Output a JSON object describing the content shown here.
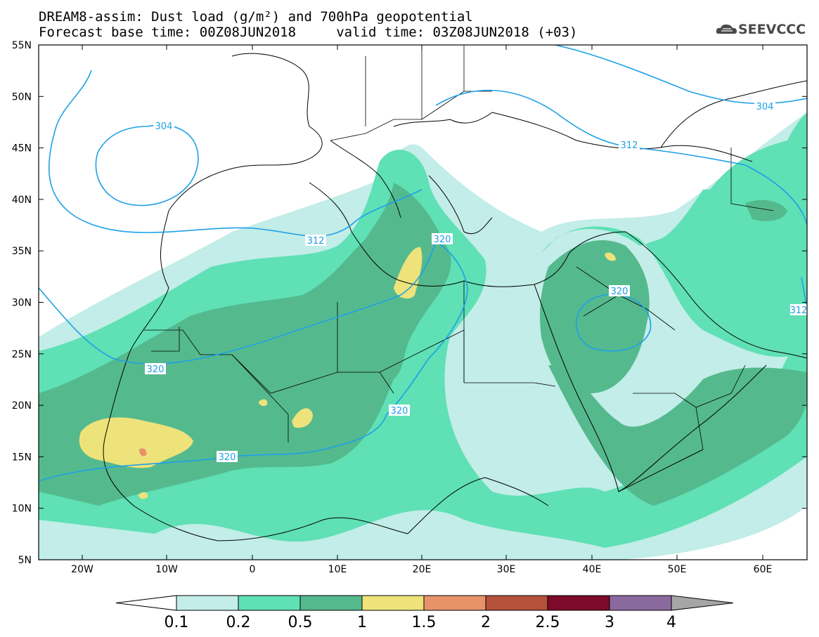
{
  "header": {
    "title_line1": "DREAM8-assim: Dust load (g/m²) and 700hPa geopotential",
    "title_line2": "Forecast base time: 00Z08JUN2018     valid time: 03Z08JUN2018 (+03)"
  },
  "logo": {
    "text": "SEEVCCC",
    "icon": "cloud-icon"
  },
  "map": {
    "lon_labels": [
      "20W",
      "10W",
      "0",
      "10E",
      "20E",
      "30E",
      "40E",
      "50E",
      "60E"
    ],
    "lat_labels": [
      "55N",
      "50N",
      "45N",
      "40N",
      "35N",
      "30N",
      "25N",
      "20N",
      "15N",
      "10N",
      "5N"
    ],
    "contour_labels": [
      "304",
      "312",
      "320",
      "320",
      "320",
      "320",
      "304",
      "312",
      "312"
    ]
  },
  "legend": {
    "colors": [
      "#c2ede8",
      "#5fe0b5",
      "#55b98e",
      "#ede37a",
      "#e8926a",
      "#b5513c",
      "#7c0a28",
      "#8a6a9e",
      "#a6a6a6"
    ],
    "labels": [
      "0.1",
      "0.2",
      "0.5",
      "1",
      "1.5",
      "2",
      "2.5",
      "3",
      "4"
    ]
  }
}
